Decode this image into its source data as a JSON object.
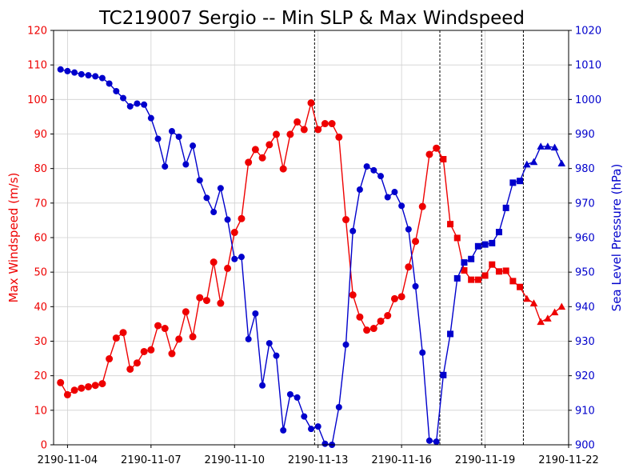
{
  "chart_data": {
    "type": "line",
    "title": "TC219007 Sergio -- Min SLP & Max Windspeed",
    "xlabel": "",
    "ylabel_left": "Max Windspeed (m/s)",
    "ylabel_right": "Sea Level Pressure (hPa)",
    "colors": {
      "wind": "#ee0000",
      "pressure": "#0000cc",
      "grid": "#d0d0d0"
    },
    "x_axis": {
      "type": "date",
      "range": [
        "2190-11-03 12:00",
        "2190-11-22 00:00"
      ],
      "ticks": [
        "2190-11-04",
        "2190-11-07",
        "2190-11-10",
        "2190-11-13",
        "2190-11-16",
        "2190-11-19",
        "2190-11-22"
      ]
    },
    "y_left": {
      "range": [
        0,
        120
      ],
      "ticks": [
        0,
        10,
        20,
        30,
        40,
        50,
        60,
        70,
        80,
        90,
        100,
        110,
        120
      ]
    },
    "y_right": {
      "range": [
        900,
        1020
      ],
      "ticks": [
        900,
        910,
        920,
        930,
        940,
        950,
        960,
        970,
        980,
        990,
        1000,
        1010,
        1020
      ]
    },
    "grid": true,
    "vlines": [
      "2190-11-12 21:00",
      "2190-11-17 09:00",
      "2190-11-18 21:00",
      "2190-11-20 09:00"
    ],
    "series": [
      {
        "axis": "left",
        "segments": [
          {
            "marker": "circle",
            "points": [
              [
                "2190-11-03 18:00",
                18.0
              ],
              [
                "2190-11-04 00:00",
                14.5
              ],
              [
                "2190-11-04 06:00",
                15.8
              ],
              [
                "2190-11-04 12:00",
                16.4
              ],
              [
                "2190-11-04 18:00",
                16.8
              ],
              [
                "2190-11-05 00:00",
                17.2
              ],
              [
                "2190-11-05 06:00",
                17.7
              ],
              [
                "2190-11-05 12:00",
                24.9
              ],
              [
                "2190-11-05 18:00",
                30.9
              ],
              [
                "2190-11-06 00:00",
                32.5
              ],
              [
                "2190-11-06 06:00",
                21.9
              ],
              [
                "2190-11-06 12:00",
                23.7
              ],
              [
                "2190-11-06 18:00",
                27.0
              ],
              [
                "2190-11-07 00:00",
                27.5
              ],
              [
                "2190-11-07 06:00",
                34.5
              ],
              [
                "2190-11-07 12:00",
                33.7
              ],
              [
                "2190-11-07 18:00",
                26.4
              ],
              [
                "2190-11-08 00:00",
                30.6
              ],
              [
                "2190-11-08 06:00",
                38.5
              ],
              [
                "2190-11-08 12:00",
                31.3
              ],
              [
                "2190-11-08 18:00",
                42.6
              ],
              [
                "2190-11-09 00:00",
                41.8
              ],
              [
                "2190-11-09 06:00",
                52.9
              ],
              [
                "2190-11-09 12:00",
                41.0
              ],
              [
                "2190-11-09 18:00",
                51.1
              ],
              [
                "2190-11-10 00:00",
                61.5
              ],
              [
                "2190-11-10 06:00",
                65.5
              ],
              [
                "2190-11-10 12:00",
                81.8
              ],
              [
                "2190-11-10 18:00",
                85.5
              ],
              [
                "2190-11-11 00:00",
                83.1
              ],
              [
                "2190-11-11 06:00",
                86.9
              ],
              [
                "2190-11-11 12:00",
                89.9
              ],
              [
                "2190-11-11 18:00",
                79.9
              ],
              [
                "2190-11-12 00:00",
                89.9
              ],
              [
                "2190-11-12 06:00",
                93.5
              ],
              [
                "2190-11-12 12:00",
                91.3
              ],
              [
                "2190-11-12 18:00",
                99.0
              ],
              [
                "2190-11-13 00:00",
                91.3
              ],
              [
                "2190-11-13 06:00",
                93.0
              ],
              [
                "2190-11-13 12:00",
                93.0
              ],
              [
                "2190-11-13 18:00",
                89.1
              ],
              [
                "2190-11-14 00:00",
                65.2
              ],
              [
                "2190-11-14 06:00",
                43.4
              ],
              [
                "2190-11-14 12:00",
                37.0
              ],
              [
                "2190-11-14 18:00",
                33.2
              ],
              [
                "2190-11-15 00:00",
                33.7
              ],
              [
                "2190-11-15 06:00",
                35.8
              ],
              [
                "2190-11-15 12:00",
                37.4
              ],
              [
                "2190-11-15 18:00",
                42.3
              ],
              [
                "2190-11-16 00:00",
                42.9
              ],
              [
                "2190-11-16 06:00",
                51.5
              ],
              [
                "2190-11-16 12:00",
                58.9
              ],
              [
                "2190-11-16 18:00",
                69.0
              ],
              [
                "2190-11-17 00:00",
                84.1
              ],
              [
                "2190-11-17 06:00",
                85.9
              ]
            ]
          },
          {
            "marker": "square",
            "points": [
              [
                "2190-11-17 12:00",
                82.7
              ],
              [
                "2190-11-17 18:00",
                63.9
              ],
              [
                "2190-11-18 00:00",
                59.9
              ],
              [
                "2190-11-18 06:00",
                50.5
              ],
              [
                "2190-11-18 12:00",
                47.8
              ],
              [
                "2190-11-18 18:00",
                47.8
              ],
              [
                "2190-11-19 00:00",
                49.0
              ],
              [
                "2190-11-19 06:00",
                52.2
              ],
              [
                "2190-11-19 12:00",
                50.2
              ],
              [
                "2190-11-19 18:00",
                50.4
              ],
              [
                "2190-11-20 00:00",
                47.4
              ],
              [
                "2190-11-20 06:00",
                45.7
              ]
            ]
          },
          {
            "marker": "triangle",
            "points": [
              [
                "2190-11-20 12:00",
                42.3
              ],
              [
                "2190-11-20 18:00",
                41.0
              ],
              [
                "2190-11-21 00:00",
                35.6
              ],
              [
                "2190-11-21 06:00",
                36.6
              ],
              [
                "2190-11-21 12:00",
                38.4
              ],
              [
                "2190-11-21 18:00",
                40.0
              ]
            ]
          }
        ]
      },
      {
        "axis": "right",
        "segments": [
          {
            "marker": "circle",
            "points": [
              [
                "2190-11-03 18:00",
                1008.7
              ],
              [
                "2190-11-04 00:00",
                1008.2
              ],
              [
                "2190-11-04 06:00",
                1007.8
              ],
              [
                "2190-11-04 12:00",
                1007.3
              ],
              [
                "2190-11-04 18:00",
                1007.0
              ],
              [
                "2190-11-05 00:00",
                1006.7
              ],
              [
                "2190-11-05 06:00",
                1006.2
              ],
              [
                "2190-11-05 12:00",
                1004.6
              ],
              [
                "2190-11-05 18:00",
                1002.4
              ],
              [
                "2190-11-06 00:00",
                1000.4
              ],
              [
                "2190-11-06 06:00",
                998.0
              ],
              [
                "2190-11-06 12:00",
                998.8
              ],
              [
                "2190-11-06 18:00",
                998.5
              ],
              [
                "2190-11-07 00:00",
                994.6
              ],
              [
                "2190-11-07 06:00",
                988.6
              ],
              [
                "2190-11-07 12:00",
                980.6
              ],
              [
                "2190-11-07 18:00",
                990.8
              ],
              [
                "2190-11-08 00:00",
                989.2
              ],
              [
                "2190-11-08 06:00",
                981.2
              ],
              [
                "2190-11-08 12:00",
                986.6
              ],
              [
                "2190-11-08 18:00",
                976.6
              ],
              [
                "2190-11-09 00:00",
                971.5
              ],
              [
                "2190-11-09 06:00",
                967.4
              ],
              [
                "2190-11-09 12:00",
                974.3
              ],
              [
                "2190-11-09 18:00",
                965.2
              ],
              [
                "2190-11-10 00:00",
                953.8
              ],
              [
                "2190-11-10 06:00",
                954.4
              ],
              [
                "2190-11-10 12:00",
                930.6
              ],
              [
                "2190-11-10 18:00",
                938.0
              ],
              [
                "2190-11-11 00:00",
                917.2
              ],
              [
                "2190-11-11 06:00",
                929.4
              ],
              [
                "2190-11-11 12:00",
                925.8
              ],
              [
                "2190-11-11 18:00",
                904.2
              ],
              [
                "2190-11-12 00:00",
                914.6
              ],
              [
                "2190-11-12 06:00",
                913.7
              ],
              [
                "2190-11-12 12:00",
                908.2
              ],
              [
                "2190-11-12 18:00",
                904.6
              ],
              [
                "2190-11-13 00:00",
                905.3
              ],
              [
                "2190-11-13 06:00",
                900.3
              ],
              [
                "2190-11-13 12:00",
                900.0
              ],
              [
                "2190-11-13 18:00",
                910.9
              ],
              [
                "2190-11-14 00:00",
                929.0
              ],
              [
                "2190-11-14 06:00",
                961.9
              ],
              [
                "2190-11-14 12:00",
                973.9
              ],
              [
                "2190-11-14 18:00",
                980.6
              ],
              [
                "2190-11-15 00:00",
                979.5
              ],
              [
                "2190-11-15 06:00",
                977.8
              ],
              [
                "2190-11-15 12:00",
                971.7
              ],
              [
                "2190-11-15 18:00",
                973.2
              ],
              [
                "2190-11-16 00:00",
                969.2
              ],
              [
                "2190-11-16 06:00",
                962.4
              ],
              [
                "2190-11-16 12:00",
                945.9
              ],
              [
                "2190-11-16 18:00",
                926.7
              ],
              [
                "2190-11-17 00:00",
                901.2
              ],
              [
                "2190-11-17 06:00",
                900.9
              ]
            ]
          },
          {
            "marker": "square",
            "points": [
              [
                "2190-11-17 12:00",
                920.2
              ],
              [
                "2190-11-17 18:00",
                932.1
              ],
              [
                "2190-11-18 00:00",
                948.2
              ],
              [
                "2190-11-18 06:00",
                952.8
              ],
              [
                "2190-11-18 12:00",
                953.8
              ],
              [
                "2190-11-18 18:00",
                957.5
              ],
              [
                "2190-11-19 00:00",
                958.0
              ],
              [
                "2190-11-19 06:00",
                958.4
              ],
              [
                "2190-11-19 12:00",
                961.6
              ],
              [
                "2190-11-19 18:00",
                968.6
              ],
              [
                "2190-11-20 00:00",
                975.9
              ],
              [
                "2190-11-20 06:00",
                976.4
              ]
            ]
          },
          {
            "marker": "triangle",
            "points": [
              [
                "2190-11-20 12:00",
                981.2
              ],
              [
                "2190-11-20 18:00",
                981.9
              ],
              [
                "2190-11-21 00:00",
                986.4
              ],
              [
                "2190-11-21 06:00",
                986.4
              ],
              [
                "2190-11-21 12:00",
                986.1
              ],
              [
                "2190-11-21 18:00",
                981.5
              ]
            ]
          }
        ]
      }
    ]
  }
}
